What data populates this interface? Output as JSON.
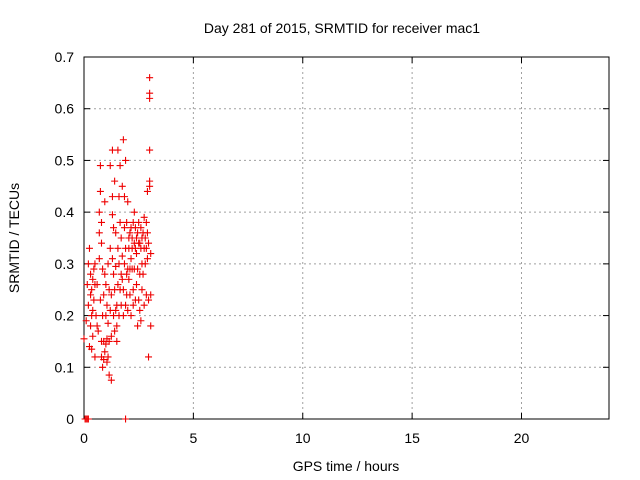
{
  "chart_data": {
    "type": "scatter",
    "title": "Day 281 of 2015, SRMTID for receiver mac1",
    "xlabel": "GPS time / hours",
    "ylabel": "SRMTID / TECUs",
    "xlim": [
      0,
      24
    ],
    "ylim": [
      0,
      0.7
    ],
    "x_ticks": [
      0,
      5,
      10,
      15,
      20
    ],
    "x_tick_labels": [
      "0",
      "5",
      "10",
      "15",
      "20"
    ],
    "y_ticks": [
      0,
      0.1,
      0.2,
      0.3,
      0.4,
      0.5,
      0.6,
      0.7
    ],
    "y_tick_labels": [
      "0",
      "0.1",
      "0.2",
      "0.3",
      "0.4",
      "0.5",
      "0.6",
      "0.7"
    ],
    "grid": true,
    "marker": "plus",
    "color": "#ee0000",
    "series": [
      {
        "name": "mac1",
        "points": [
          [
            0.05,
            0.0
          ],
          [
            0.1,
            0.0
          ],
          [
            0.15,
            0.0
          ],
          [
            0.2,
            0.0
          ],
          [
            1.9,
            0.0
          ],
          [
            0.0,
            0.155
          ],
          [
            0.1,
            0.19
          ],
          [
            0.15,
            0.26
          ],
          [
            0.2,
            0.3
          ],
          [
            0.2,
            0.22
          ],
          [
            0.25,
            0.33
          ],
          [
            0.25,
            0.14
          ],
          [
            0.3,
            0.28
          ],
          [
            0.3,
            0.18
          ],
          [
            0.3,
            0.24
          ],
          [
            0.35,
            0.25
          ],
          [
            0.35,
            0.2
          ],
          [
            0.35,
            0.135
          ],
          [
            0.4,
            0.27
          ],
          [
            0.4,
            0.21
          ],
          [
            0.4,
            0.16
          ],
          [
            0.45,
            0.29
          ],
          [
            0.45,
            0.23
          ],
          [
            0.5,
            0.3
          ],
          [
            0.5,
            0.26
          ],
          [
            0.5,
            0.12
          ],
          [
            0.55,
            0.2
          ],
          [
            0.6,
            0.26
          ],
          [
            0.6,
            0.18
          ],
          [
            0.65,
            0.17
          ],
          [
            0.7,
            0.31
          ],
          [
            0.7,
            0.36
          ],
          [
            0.7,
            0.4
          ],
          [
            0.75,
            0.44
          ],
          [
            0.75,
            0.23
          ],
          [
            0.75,
            0.49
          ],
          [
            0.8,
            0.38
          ],
          [
            0.8,
            0.34
          ],
          [
            0.8,
            0.15
          ],
          [
            0.8,
            0.12
          ],
          [
            0.85,
            0.29
          ],
          [
            0.85,
            0.2
          ],
          [
            0.85,
            0.1
          ],
          [
            0.9,
            0.24
          ],
          [
            0.9,
            0.15
          ],
          [
            0.9,
            0.115
          ],
          [
            0.95,
            0.28
          ],
          [
            0.95,
            0.13
          ],
          [
            0.95,
            0.42
          ],
          [
            1.0,
            0.26
          ],
          [
            1.0,
            0.2
          ],
          [
            1.0,
            0.145
          ],
          [
            1.05,
            0.22
          ],
          [
            1.05,
            0.155
          ],
          [
            1.05,
            0.11
          ],
          [
            1.1,
            0.3
          ],
          [
            1.1,
            0.185
          ],
          [
            1.1,
            0.12
          ],
          [
            1.15,
            0.25
          ],
          [
            1.15,
            0.15
          ],
          [
            1.15,
            0.085
          ],
          [
            1.2,
            0.33
          ],
          [
            1.2,
            0.21
          ],
          [
            1.2,
            0.49
          ],
          [
            1.25,
            0.075
          ],
          [
            1.25,
            0.16
          ],
          [
            1.25,
            0.24
          ],
          [
            1.3,
            0.31
          ],
          [
            1.3,
            0.43
          ],
          [
            1.3,
            0.395
          ],
          [
            1.3,
            0.52
          ],
          [
            1.35,
            0.2
          ],
          [
            1.35,
            0.28
          ],
          [
            1.35,
            0.37
          ],
          [
            1.4,
            0.17
          ],
          [
            1.4,
            0.46
          ],
          [
            1.4,
            0.25
          ],
          [
            1.45,
            0.21
          ],
          [
            1.45,
            0.295
          ],
          [
            1.45,
            0.36
          ],
          [
            1.5,
            0.22
          ],
          [
            1.5,
            0.18
          ],
          [
            1.5,
            0.15
          ],
          [
            1.55,
            0.26
          ],
          [
            1.55,
            0.33
          ],
          [
            1.55,
            0.52
          ],
          [
            1.6,
            0.2
          ],
          [
            1.6,
            0.3
          ],
          [
            1.6,
            0.43
          ],
          [
            1.65,
            0.25
          ],
          [
            1.65,
            0.38
          ],
          [
            1.65,
            0.49
          ],
          [
            1.7,
            0.28
          ],
          [
            1.7,
            0.22
          ],
          [
            1.7,
            0.35
          ],
          [
            1.75,
            0.27
          ],
          [
            1.75,
            0.315
          ],
          [
            1.75,
            0.45
          ],
          [
            1.8,
            0.25
          ],
          [
            1.8,
            0.2
          ],
          [
            1.8,
            0.54
          ],
          [
            1.85,
            0.37
          ],
          [
            1.85,
            0.3
          ],
          [
            1.85,
            0.43
          ],
          [
            1.9,
            0.22
          ],
          [
            1.9,
            0.33
          ],
          [
            1.9,
            0.5
          ],
          [
            1.95,
            0.28
          ],
          [
            1.95,
            0.24
          ],
          [
            1.95,
            0.38
          ],
          [
            2.0,
            0.29
          ],
          [
            2.0,
            0.21
          ],
          [
            2.0,
            0.42
          ],
          [
            2.05,
            0.27
          ],
          [
            2.05,
            0.35
          ],
          [
            2.05,
            0.33
          ],
          [
            2.1,
            0.36
          ],
          [
            2.1,
            0.29
          ],
          [
            2.1,
            0.24
          ],
          [
            2.15,
            0.37
          ],
          [
            2.15,
            0.31
          ],
          [
            2.15,
            0.2
          ],
          [
            2.2,
            0.35
          ],
          [
            2.2,
            0.33
          ],
          [
            2.2,
            0.29
          ],
          [
            2.25,
            0.38
          ],
          [
            2.25,
            0.25
          ],
          [
            2.25,
            0.22
          ],
          [
            2.3,
            0.34
          ],
          [
            2.3,
            0.29
          ],
          [
            2.3,
            0.4
          ],
          [
            2.35,
            0.33
          ],
          [
            2.35,
            0.23
          ],
          [
            2.35,
            0.37
          ],
          [
            2.4,
            0.35
          ],
          [
            2.4,
            0.32
          ],
          [
            2.4,
            0.26
          ],
          [
            2.45,
            0.36
          ],
          [
            2.45,
            0.29
          ],
          [
            2.45,
            0.18
          ],
          [
            2.5,
            0.38
          ],
          [
            2.5,
            0.34
          ],
          [
            2.5,
            0.23
          ],
          [
            2.55,
            0.34
          ],
          [
            2.55,
            0.28
          ],
          [
            2.55,
            0.21
          ],
          [
            2.6,
            0.33
          ],
          [
            2.6,
            0.37
          ],
          [
            2.6,
            0.19
          ],
          [
            2.65,
            0.35
          ],
          [
            2.65,
            0.3
          ],
          [
            2.65,
            0.25
          ],
          [
            2.7,
            0.36
          ],
          [
            2.7,
            0.28
          ],
          [
            2.75,
            0.39
          ],
          [
            2.75,
            0.33
          ],
          [
            2.75,
            0.22
          ],
          [
            2.8,
            0.35
          ],
          [
            2.8,
            0.3
          ],
          [
            2.85,
            0.38
          ],
          [
            2.85,
            0.33
          ],
          [
            2.85,
            0.24
          ],
          [
            2.9,
            0.36
          ],
          [
            2.9,
            0.31
          ],
          [
            2.9,
            0.44
          ],
          [
            2.95,
            0.34
          ],
          [
            2.95,
            0.23
          ],
          [
            2.95,
            0.12
          ],
          [
            3.0,
            0.45
          ],
          [
            3.0,
            0.52
          ],
          [
            3.0,
            0.62
          ],
          [
            3.0,
            0.63
          ],
          [
            3.0,
            0.66
          ],
          [
            3.0,
            0.46
          ],
          [
            3.05,
            0.32
          ],
          [
            3.05,
            0.24
          ],
          [
            3.05,
            0.18
          ]
        ]
      }
    ]
  }
}
